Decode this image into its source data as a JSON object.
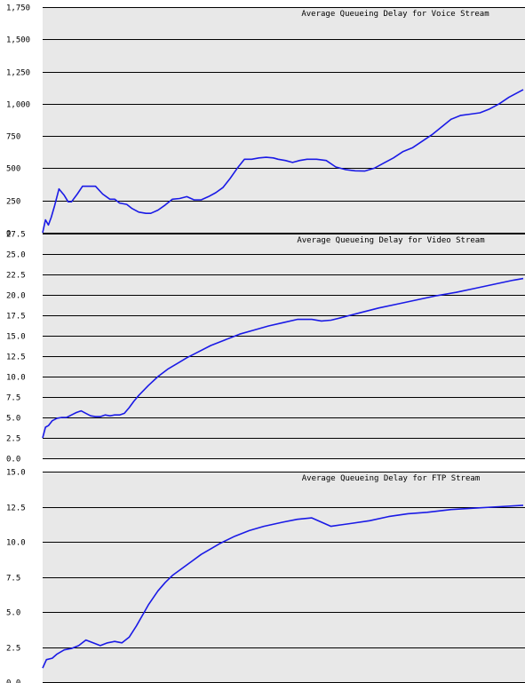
{
  "chart_data": [
    {
      "type": "line",
      "title": "Average Queueing Delay for Voice Stream",
      "ylim": [
        0,
        1750
      ],
      "yticks": [
        0,
        250,
        500,
        750,
        1000,
        1250,
        1500,
        1750
      ],
      "ytick_labels": [
        "0",
        "250",
        "500",
        "750",
        "1,000",
        "1,250",
        "1,500",
        "1,750"
      ],
      "grid": true,
      "series": [
        {
          "color": "#1a1ae6",
          "x": [
            0,
            0.6,
            1.2,
            1.8,
            2.5,
            3.4,
            4.5,
            5.3,
            6,
            7.2,
            8.3,
            9.8,
            11,
            12.5,
            14,
            15,
            16,
            17.5,
            18.5,
            20,
            21.5,
            22.5,
            24,
            25.5,
            27,
            28.5,
            30,
            31.5,
            33,
            34.5,
            36,
            37.5,
            39,
            40.5,
            42,
            43.5,
            45,
            46.5,
            48,
            49,
            50.5,
            52,
            53.5,
            55,
            57,
            59,
            61,
            63,
            65,
            67,
            69,
            71,
            73,
            75,
            77,
            79,
            81,
            83,
            85,
            87,
            89,
            91,
            93,
            95,
            97,
            99,
            100
          ],
          "y": [
            0,
            100,
            60,
            120,
            210,
            340,
            290,
            240,
            240,
            300,
            360,
            360,
            360,
            300,
            260,
            260,
            230,
            220,
            190,
            160,
            150,
            150,
            175,
            215,
            260,
            265,
            280,
            255,
            255,
            280,
            310,
            350,
            420,
            500,
            570,
            570,
            580,
            585,
            580,
            570,
            560,
            545,
            560,
            570,
            570,
            560,
            510,
            490,
            480,
            478,
            500,
            540,
            580,
            630,
            660,
            710,
            760,
            820,
            880,
            910,
            920,
            930,
            960,
            1000,
            1050,
            1090,
            1110
          ]
        }
      ]
    },
    {
      "type": "line",
      "title": "Average Queueing Delay for Video Stream",
      "ylim": [
        0,
        27.5
      ],
      "yticks": [
        0,
        2.5,
        5,
        7.5,
        10,
        12.5,
        15,
        17.5,
        20,
        22.5,
        25,
        27.5
      ],
      "ytick_labels": [
        "0.0",
        "2.5",
        "5.0",
        "7.5",
        "10.0",
        "12.5",
        "15.0",
        "17.5",
        "20.0",
        "22.5",
        "25.0",
        "27.5"
      ],
      "grid": true,
      "series": [
        {
          "color": "#1a1ae6",
          "x": [
            0,
            0.6,
            1.2,
            2,
            3,
            4,
            5,
            6,
            7,
            8,
            9,
            10,
            11,
            12,
            13,
            14,
            15,
            16,
            17,
            18,
            19,
            20,
            22,
            24,
            26,
            28,
            30,
            32,
            35,
            38,
            41,
            44,
            47,
            50,
            53,
            56,
            58,
            60,
            62,
            64,
            66,
            70,
            74,
            78,
            82,
            86,
            90,
            94,
            98,
            100
          ],
          "y": [
            2.5,
            3.8,
            4.0,
            4.6,
            4.9,
            5.0,
            5.0,
            5.3,
            5.6,
            5.8,
            5.5,
            5.2,
            5.1,
            5.1,
            5.3,
            5.2,
            5.3,
            5.3,
            5.5,
            6.2,
            7.0,
            7.7,
            8.9,
            10.0,
            10.9,
            11.6,
            12.3,
            12.9,
            13.8,
            14.5,
            15.2,
            15.7,
            16.2,
            16.6,
            17.0,
            17.0,
            16.8,
            16.9,
            17.2,
            17.5,
            17.8,
            18.4,
            18.9,
            19.4,
            19.9,
            20.3,
            20.8,
            21.3,
            21.8,
            22.0
          ]
        }
      ]
    },
    {
      "type": "line",
      "title": "Average Queueing Delay for FTP Stream",
      "ylim": [
        0,
        15
      ],
      "yticks": [
        0,
        2.5,
        5,
        7.5,
        10,
        12.5,
        15
      ],
      "ytick_labels": [
        "0.0",
        "2.5",
        "5.0",
        "7.5",
        "10.0",
        "12.5",
        "15.0"
      ],
      "grid": true,
      "series": [
        {
          "color": "#1a1ae6",
          "x": [
            0,
            0.8,
            2,
            3,
            4.5,
            6,
            7.5,
            9,
            10.5,
            12,
            13.5,
            15,
            16.5,
            18,
            19.5,
            21,
            22,
            23,
            24,
            25.5,
            27,
            29,
            31,
            33,
            35,
            37,
            40,
            43,
            46,
            50,
            53,
            56,
            58,
            60,
            62,
            64,
            68,
            72,
            76,
            80,
            85,
            90,
            95,
            100
          ],
          "y": [
            1.0,
            1.6,
            1.7,
            2.0,
            2.3,
            2.4,
            2.6,
            3.0,
            2.8,
            2.6,
            2.8,
            2.9,
            2.8,
            3.2,
            4.0,
            4.9,
            5.5,
            6.0,
            6.5,
            7.1,
            7.6,
            8.1,
            8.6,
            9.1,
            9.5,
            9.9,
            10.4,
            10.8,
            11.1,
            11.4,
            11.6,
            11.7,
            11.4,
            11.1,
            11.2,
            11.3,
            11.5,
            11.8,
            12.0,
            12.1,
            12.3,
            12.4,
            12.5,
            12.6
          ]
        }
      ]
    }
  ]
}
